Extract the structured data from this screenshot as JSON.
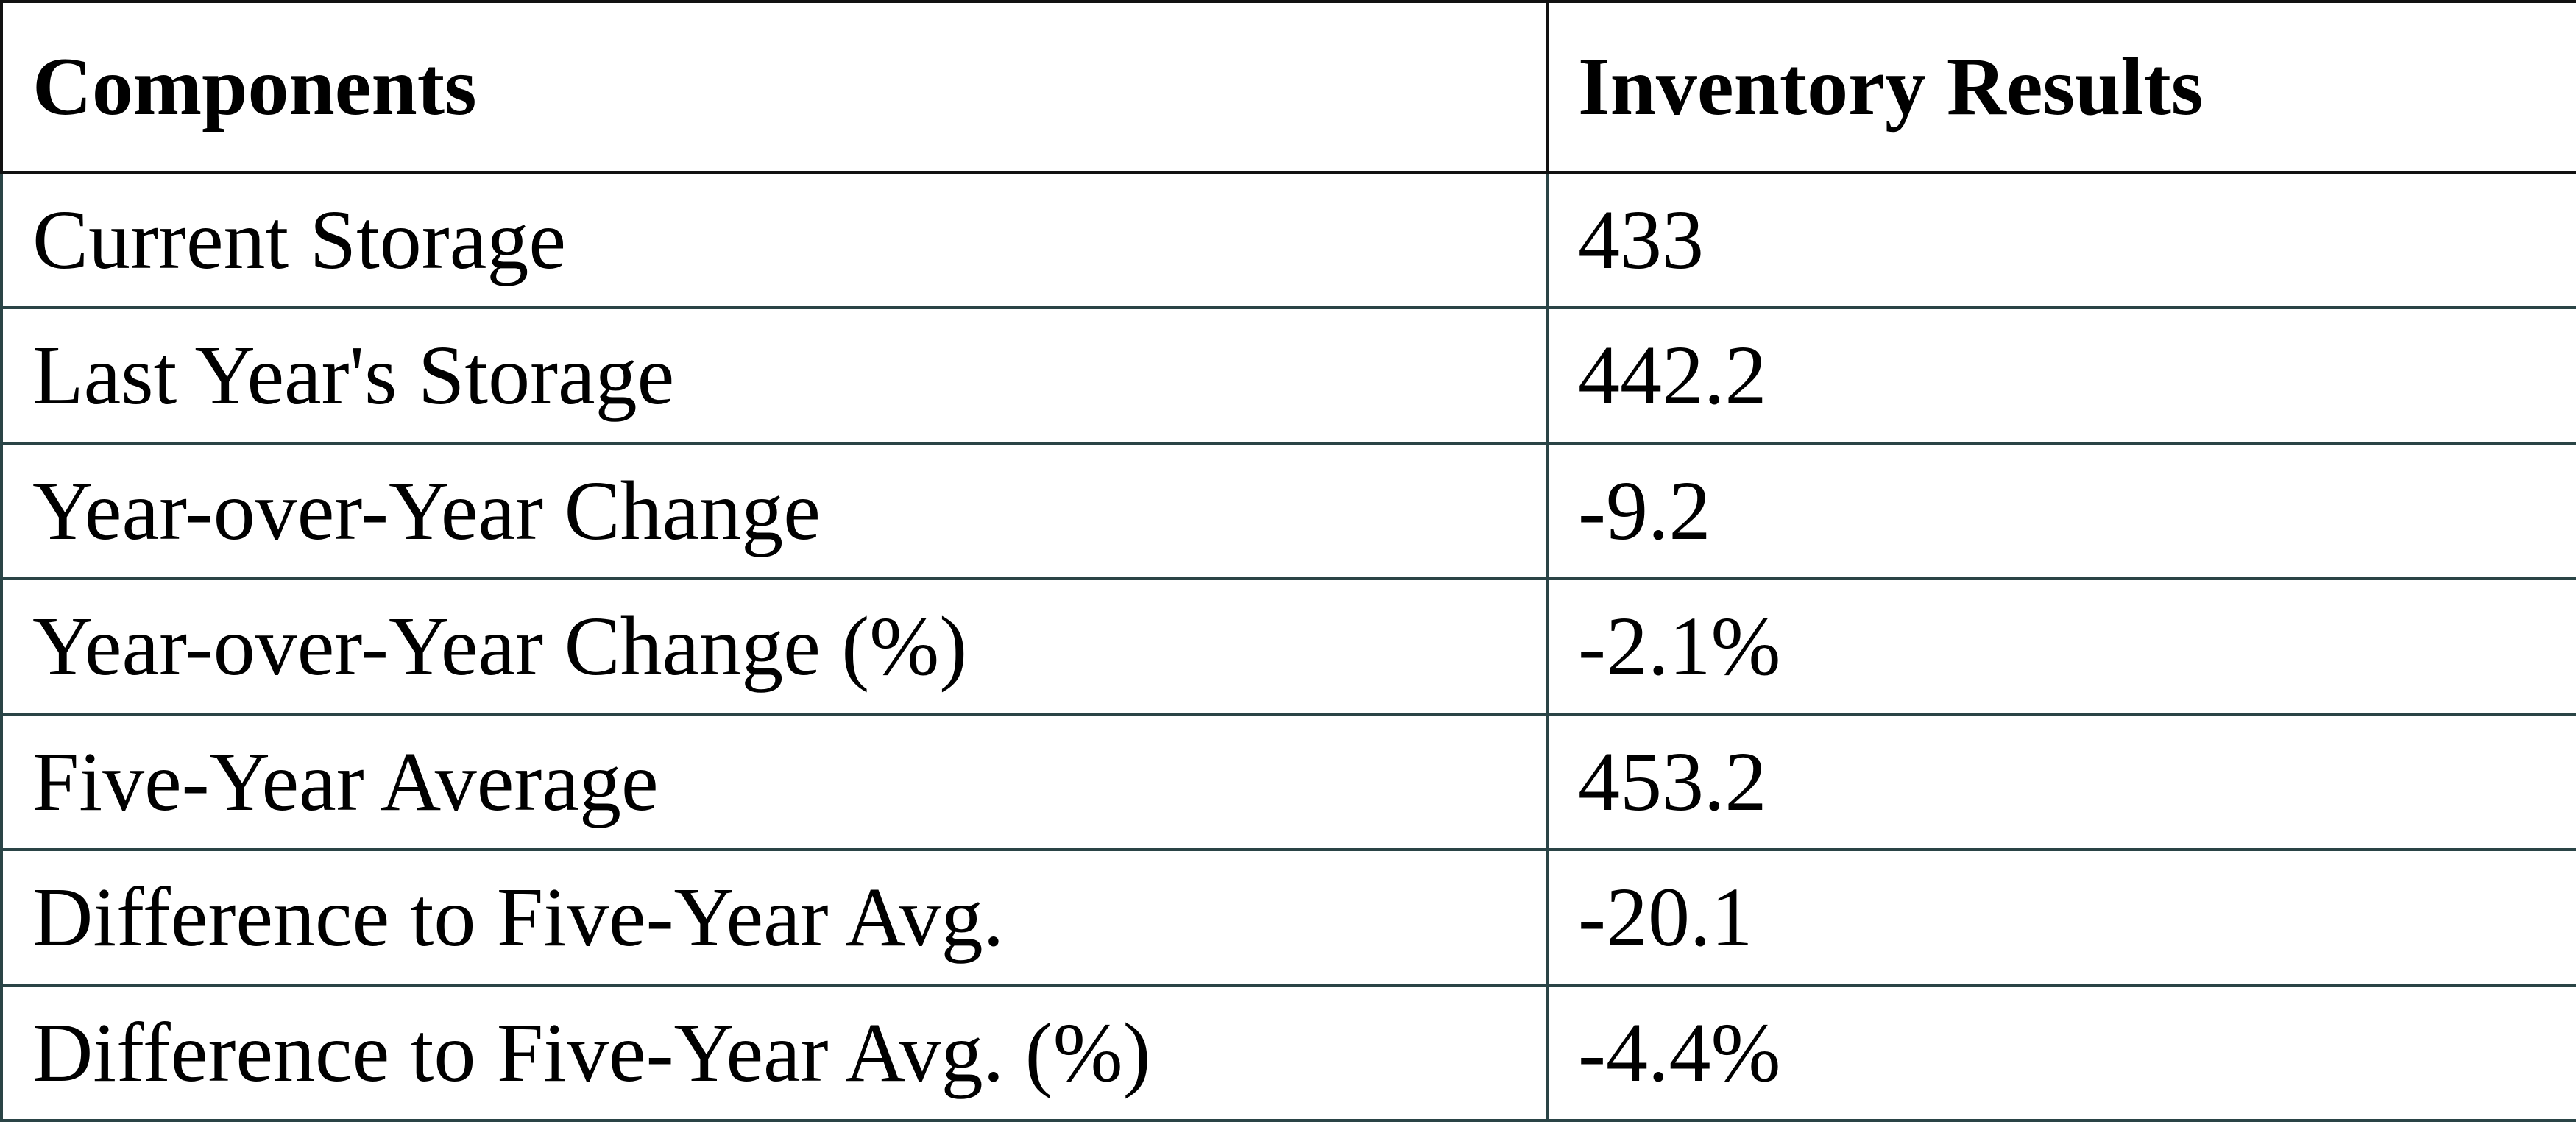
{
  "table": {
    "header": [
      "Components",
      "Inventory Results"
    ],
    "rows": [
      [
        "Current Storage",
        "433"
      ],
      [
        "Last Year's Storage",
        "442.2"
      ],
      [
        "Year-over-Year Change",
        "-9.2"
      ],
      [
        "Year-over-Year Change (%)",
        "-2.1%"
      ],
      [
        "Five-Year Average",
        "453.2"
      ],
      [
        "Difference to Five-Year Avg.",
        "-20.1"
      ],
      [
        "Difference to Five-Year Avg. (%)",
        "-4.4%"
      ]
    ]
  }
}
